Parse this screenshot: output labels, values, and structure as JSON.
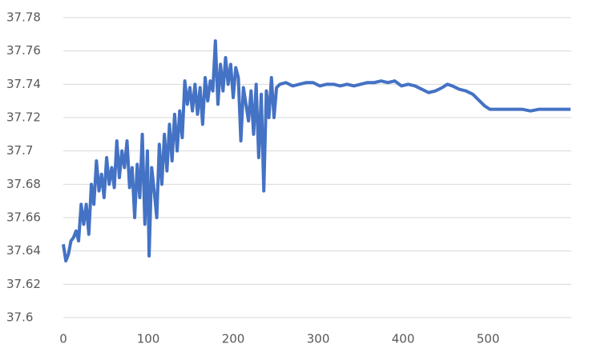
{
  "chart_data": {
    "type": "line",
    "x": [
      0,
      3,
      6,
      9,
      12,
      15,
      18,
      21,
      24,
      27,
      30,
      33,
      36,
      39,
      42,
      45,
      48,
      51,
      54,
      57,
      60,
      63,
      66,
      69,
      72,
      75,
      78,
      81,
      84,
      87,
      90,
      93,
      96,
      99,
      101,
      104,
      107,
      110,
      113,
      116,
      119,
      122,
      125,
      128,
      131,
      134,
      137,
      140,
      143,
      146,
      149,
      152,
      155,
      158,
      161,
      164,
      167,
      170,
      173,
      176,
      179,
      182,
      185,
      188,
      191,
      194,
      197,
      200,
      203,
      206,
      209,
      212,
      215,
      218,
      221,
      224,
      227,
      230,
      233,
      236,
      239,
      242,
      245,
      248,
      251,
      255,
      262,
      270,
      278,
      286,
      294,
      302,
      310,
      318,
      326,
      334,
      342,
      350,
      358,
      366,
      374,
      382,
      390,
      398,
      406,
      414,
      422,
      430,
      438,
      446,
      452,
      458,
      466,
      474,
      482,
      490,
      496,
      502,
      510,
      520,
      530,
      540,
      550,
      560,
      570,
      580,
      590,
      597
    ],
    "series": [
      {
        "color": "#4472c4",
        "values": [
          37.644,
          37.634,
          37.638,
          37.646,
          37.648,
          37.652,
          37.646,
          37.668,
          37.656,
          37.668,
          37.65,
          37.68,
          37.668,
          37.694,
          37.676,
          37.686,
          37.672,
          37.696,
          37.68,
          37.69,
          37.678,
          37.706,
          37.684,
          37.7,
          37.69,
          37.706,
          37.678,
          37.69,
          37.66,
          37.692,
          37.672,
          37.71,
          37.656,
          37.7,
          37.637,
          37.69,
          37.676,
          37.66,
          37.704,
          37.68,
          37.71,
          37.688,
          37.716,
          37.694,
          37.722,
          37.7,
          37.724,
          37.708,
          37.742,
          37.728,
          37.738,
          37.724,
          37.74,
          37.722,
          37.738,
          37.716,
          37.744,
          37.73,
          37.742,
          37.736,
          37.766,
          37.728,
          37.752,
          37.736,
          37.756,
          37.74,
          37.752,
          37.732,
          37.75,
          37.744,
          37.706,
          37.738,
          37.728,
          37.718,
          37.736,
          37.71,
          37.74,
          37.696,
          37.734,
          37.676,
          37.736,
          37.72,
          37.744,
          37.72,
          37.738,
          37.74,
          37.741,
          37.739,
          37.74,
          37.741,
          37.741,
          37.739,
          37.74,
          37.74,
          37.739,
          37.74,
          37.739,
          37.74,
          37.741,
          37.741,
          37.742,
          37.741,
          37.742,
          37.739,
          37.74,
          37.739,
          37.737,
          37.735,
          37.736,
          37.738,
          37.74,
          37.739,
          37.737,
          37.736,
          37.734,
          37.73,
          37.727,
          37.725,
          37.725,
          37.725,
          37.725,
          37.725,
          37.724,
          37.725,
          37.725,
          37.725,
          37.725,
          37.725
        ]
      }
    ],
    "xlim": [
      0,
      598
    ],
    "xticks": [
      0,
      100,
      200,
      300,
      400,
      500
    ],
    "ylim": [
      37.6,
      37.78
    ],
    "yticks": [
      37.6,
      37.62,
      37.64,
      37.66,
      37.68,
      37.7,
      37.72,
      37.74,
      37.76,
      37.78
    ],
    "grid": true
  }
}
